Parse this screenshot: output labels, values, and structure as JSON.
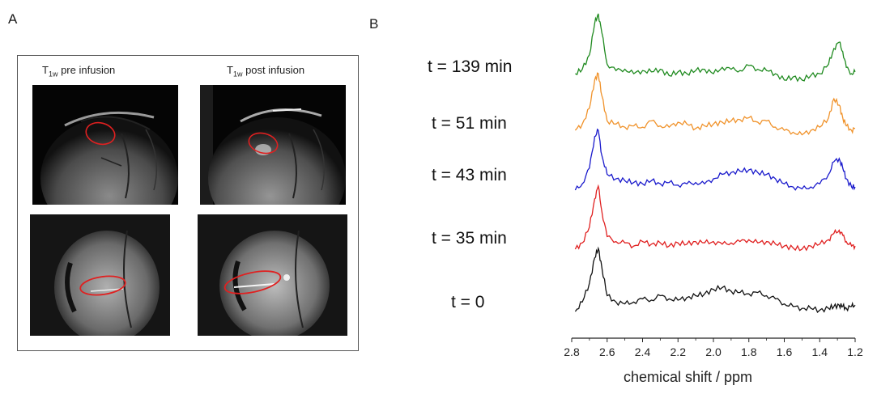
{
  "panel_a": {
    "letter": "A",
    "caption_pre_base": "T",
    "caption_pre_sub": "1w",
    "caption_pre_rest": " pre infusion",
    "caption_post_base": "T",
    "caption_post_sub": "1w",
    "caption_post_rest": " post infusion",
    "roi_color": "#e02020"
  },
  "panel_b": {
    "letter": "B",
    "time_labels": [
      "t = 139 min",
      "t = 51 min",
      "t = 43 min",
      "t = 35 min",
      "t = 0"
    ],
    "xlabel": "chemical shift / ppm"
  },
  "chart_data": {
    "type": "line",
    "xlabel": "chemical shift / ppm",
    "xlim": [
      2.8,
      1.2
    ],
    "x_reversed": true,
    "xticks": [
      "2.8",
      "2.6",
      "2.4",
      "2.2",
      "2.0",
      "1.8",
      "1.6",
      "1.4",
      "1.2"
    ],
    "y_axis_shown": false,
    "grid": false,
    "series": [
      {
        "name": "t = 139 min",
        "color": "#1f8a1f",
        "x": [
          2.78,
          2.74,
          2.7,
          2.67,
          2.65,
          2.63,
          2.6,
          2.55,
          2.5,
          2.45,
          2.4,
          2.35,
          2.3,
          2.25,
          2.2,
          2.15,
          2.1,
          2.05,
          2.0,
          1.95,
          1.9,
          1.85,
          1.8,
          1.75,
          1.7,
          1.65,
          1.6,
          1.55,
          1.5,
          1.45,
          1.4,
          1.35,
          1.32,
          1.29,
          1.27,
          1.25,
          1.22,
          1.2
        ],
        "y": [
          0.05,
          0.12,
          0.35,
          0.85,
          1.0,
          0.7,
          0.2,
          0.1,
          0.12,
          0.05,
          0.1,
          0.08,
          0.12,
          0.02,
          0.08,
          0.05,
          0.1,
          0.12,
          0.05,
          0.15,
          0.12,
          0.1,
          0.18,
          0.12,
          0.1,
          0.05,
          -0.05,
          0.0,
          -0.05,
          0.02,
          0.05,
          0.2,
          0.45,
          0.55,
          0.4,
          0.15,
          0.05,
          0.08
        ]
      },
      {
        "name": "t = 51 min",
        "color": "#f0922a",
        "x": [
          2.78,
          2.74,
          2.7,
          2.67,
          2.65,
          2.63,
          2.6,
          2.55,
          2.5,
          2.45,
          2.4,
          2.35,
          2.3,
          2.25,
          2.2,
          2.15,
          2.1,
          2.05,
          2.0,
          1.95,
          1.9,
          1.85,
          1.8,
          1.75,
          1.7,
          1.65,
          1.6,
          1.55,
          1.5,
          1.45,
          1.4,
          1.35,
          1.32,
          1.29,
          1.27,
          1.25,
          1.22,
          1.2
        ],
        "y": [
          0.05,
          0.15,
          0.4,
          0.85,
          0.95,
          0.6,
          0.2,
          0.15,
          0.1,
          0.12,
          0.1,
          0.2,
          0.12,
          0.1,
          0.18,
          0.15,
          0.08,
          0.12,
          0.15,
          0.18,
          0.2,
          0.22,
          0.25,
          0.18,
          0.2,
          0.1,
          0.05,
          0.02,
          -0.02,
          0.05,
          0.1,
          0.25,
          0.55,
          0.45,
          0.25,
          0.12,
          0.05,
          0.08
        ]
      },
      {
        "name": "t = 43 min",
        "color": "#1a1acc",
        "x": [
          2.78,
          2.74,
          2.7,
          2.67,
          2.65,
          2.63,
          2.6,
          2.55,
          2.5,
          2.45,
          2.4,
          2.35,
          2.3,
          2.25,
          2.2,
          2.15,
          2.1,
          2.05,
          2.0,
          1.95,
          1.9,
          1.85,
          1.8,
          1.75,
          1.7,
          1.65,
          1.6,
          1.55,
          1.5,
          1.45,
          1.4,
          1.35,
          1.32,
          1.29,
          1.27,
          1.25,
          1.22,
          1.2
        ],
        "y": [
          0.0,
          0.1,
          0.35,
          0.85,
          0.95,
          0.55,
          0.25,
          0.18,
          0.15,
          0.12,
          0.1,
          0.15,
          0.1,
          0.12,
          0.08,
          0.1,
          0.12,
          0.1,
          0.18,
          0.25,
          0.28,
          0.3,
          0.32,
          0.28,
          0.25,
          0.18,
          0.1,
          0.05,
          0.02,
          0.05,
          0.1,
          0.25,
          0.45,
          0.5,
          0.35,
          0.18,
          0.05,
          0.05
        ]
      },
      {
        "name": "t = 35 min",
        "color": "#e02020",
        "x": [
          2.78,
          2.74,
          2.7,
          2.67,
          2.65,
          2.63,
          2.6,
          2.55,
          2.5,
          2.45,
          2.4,
          2.35,
          2.3,
          2.25,
          2.2,
          2.15,
          2.1,
          2.05,
          2.0,
          1.95,
          1.9,
          1.85,
          1.8,
          1.75,
          1.7,
          1.65,
          1.6,
          1.55,
          1.5,
          1.45,
          1.4,
          1.35,
          1.32,
          1.29,
          1.27,
          1.25,
          1.22,
          1.2
        ],
        "y": [
          0.0,
          0.1,
          0.35,
          0.8,
          1.0,
          0.6,
          0.2,
          0.12,
          0.1,
          0.05,
          0.12,
          0.08,
          0.1,
          0.05,
          0.1,
          0.08,
          0.12,
          0.1,
          0.12,
          0.08,
          0.1,
          0.12,
          0.15,
          0.1,
          0.12,
          0.08,
          0.05,
          0.02,
          0.0,
          0.05,
          0.08,
          0.15,
          0.25,
          0.3,
          0.22,
          0.12,
          0.05,
          0.05
        ]
      },
      {
        "name": "t = 0",
        "color": "#111111",
        "x": [
          2.78,
          2.74,
          2.7,
          2.67,
          2.65,
          2.63,
          2.6,
          2.55,
          2.5,
          2.45,
          2.4,
          2.35,
          2.3,
          2.25,
          2.2,
          2.15,
          2.1,
          2.05,
          2.0,
          1.95,
          1.9,
          1.85,
          1.8,
          1.75,
          1.7,
          1.65,
          1.6,
          1.55,
          1.5,
          1.45,
          1.4,
          1.35,
          1.32,
          1.29,
          1.27,
          1.25,
          1.22,
          1.2
        ],
        "y": [
          0.0,
          0.15,
          0.45,
          0.85,
          1.0,
          0.7,
          0.25,
          0.15,
          0.12,
          0.15,
          0.2,
          0.18,
          0.25,
          0.2,
          0.18,
          0.22,
          0.25,
          0.28,
          0.35,
          0.38,
          0.32,
          0.3,
          0.28,
          0.3,
          0.25,
          0.2,
          0.12,
          0.08,
          0.05,
          0.05,
          0.02,
          0.05,
          0.08,
          0.1,
          0.08,
          0.05,
          0.08,
          0.1
        ]
      }
    ]
  }
}
